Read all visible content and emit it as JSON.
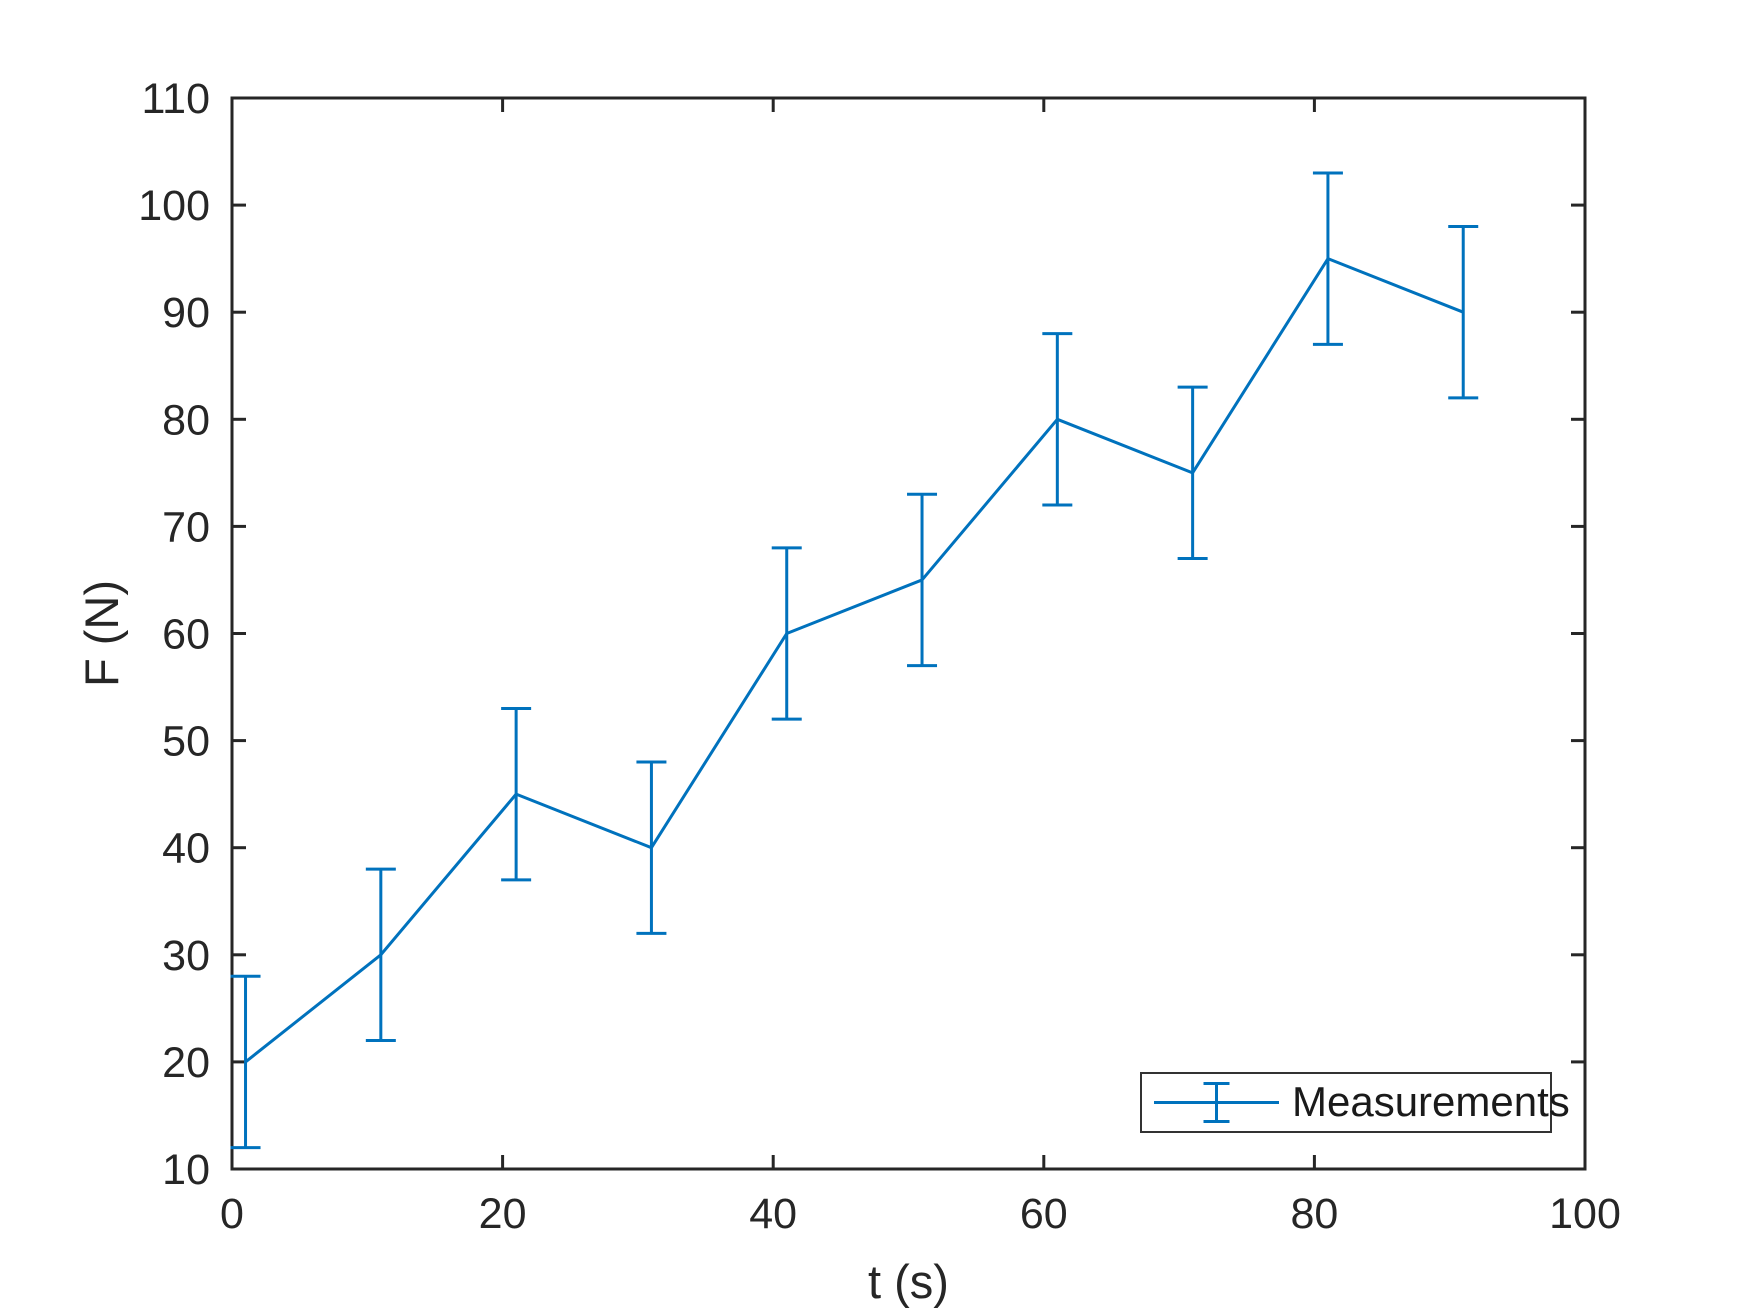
{
  "figure": {
    "background_color": "#ffffff",
    "axis_color": "#262626",
    "legend": {
      "label": "Measurements",
      "position": "south-east",
      "sample_icon": "errorbar-line-sample"
    }
  },
  "chart_data": {
    "type": "line",
    "subtype": "errorbar",
    "title": "",
    "xlabel": "t (s)",
    "ylabel": "F (N)",
    "xlim": [
      0,
      100
    ],
    "ylim": [
      10,
      110
    ],
    "xticks": [
      0,
      20,
      40,
      60,
      80,
      100
    ],
    "yticks": [
      10,
      20,
      30,
      40,
      50,
      60,
      70,
      80,
      90,
      100,
      110
    ],
    "grid": false,
    "box": true,
    "legend_position": "south-east",
    "series": [
      {
        "name": "Measurements",
        "x": [
          1,
          11,
          21,
          31,
          41,
          51,
          61,
          71,
          81,
          91
        ],
        "y": [
          20,
          30,
          45,
          40,
          60,
          65,
          80,
          75,
          95,
          90
        ],
        "yerr": [
          8,
          8,
          8,
          8,
          8,
          8,
          8,
          8,
          8,
          8
        ],
        "color": "#0072BD",
        "marker": "none"
      }
    ]
  }
}
